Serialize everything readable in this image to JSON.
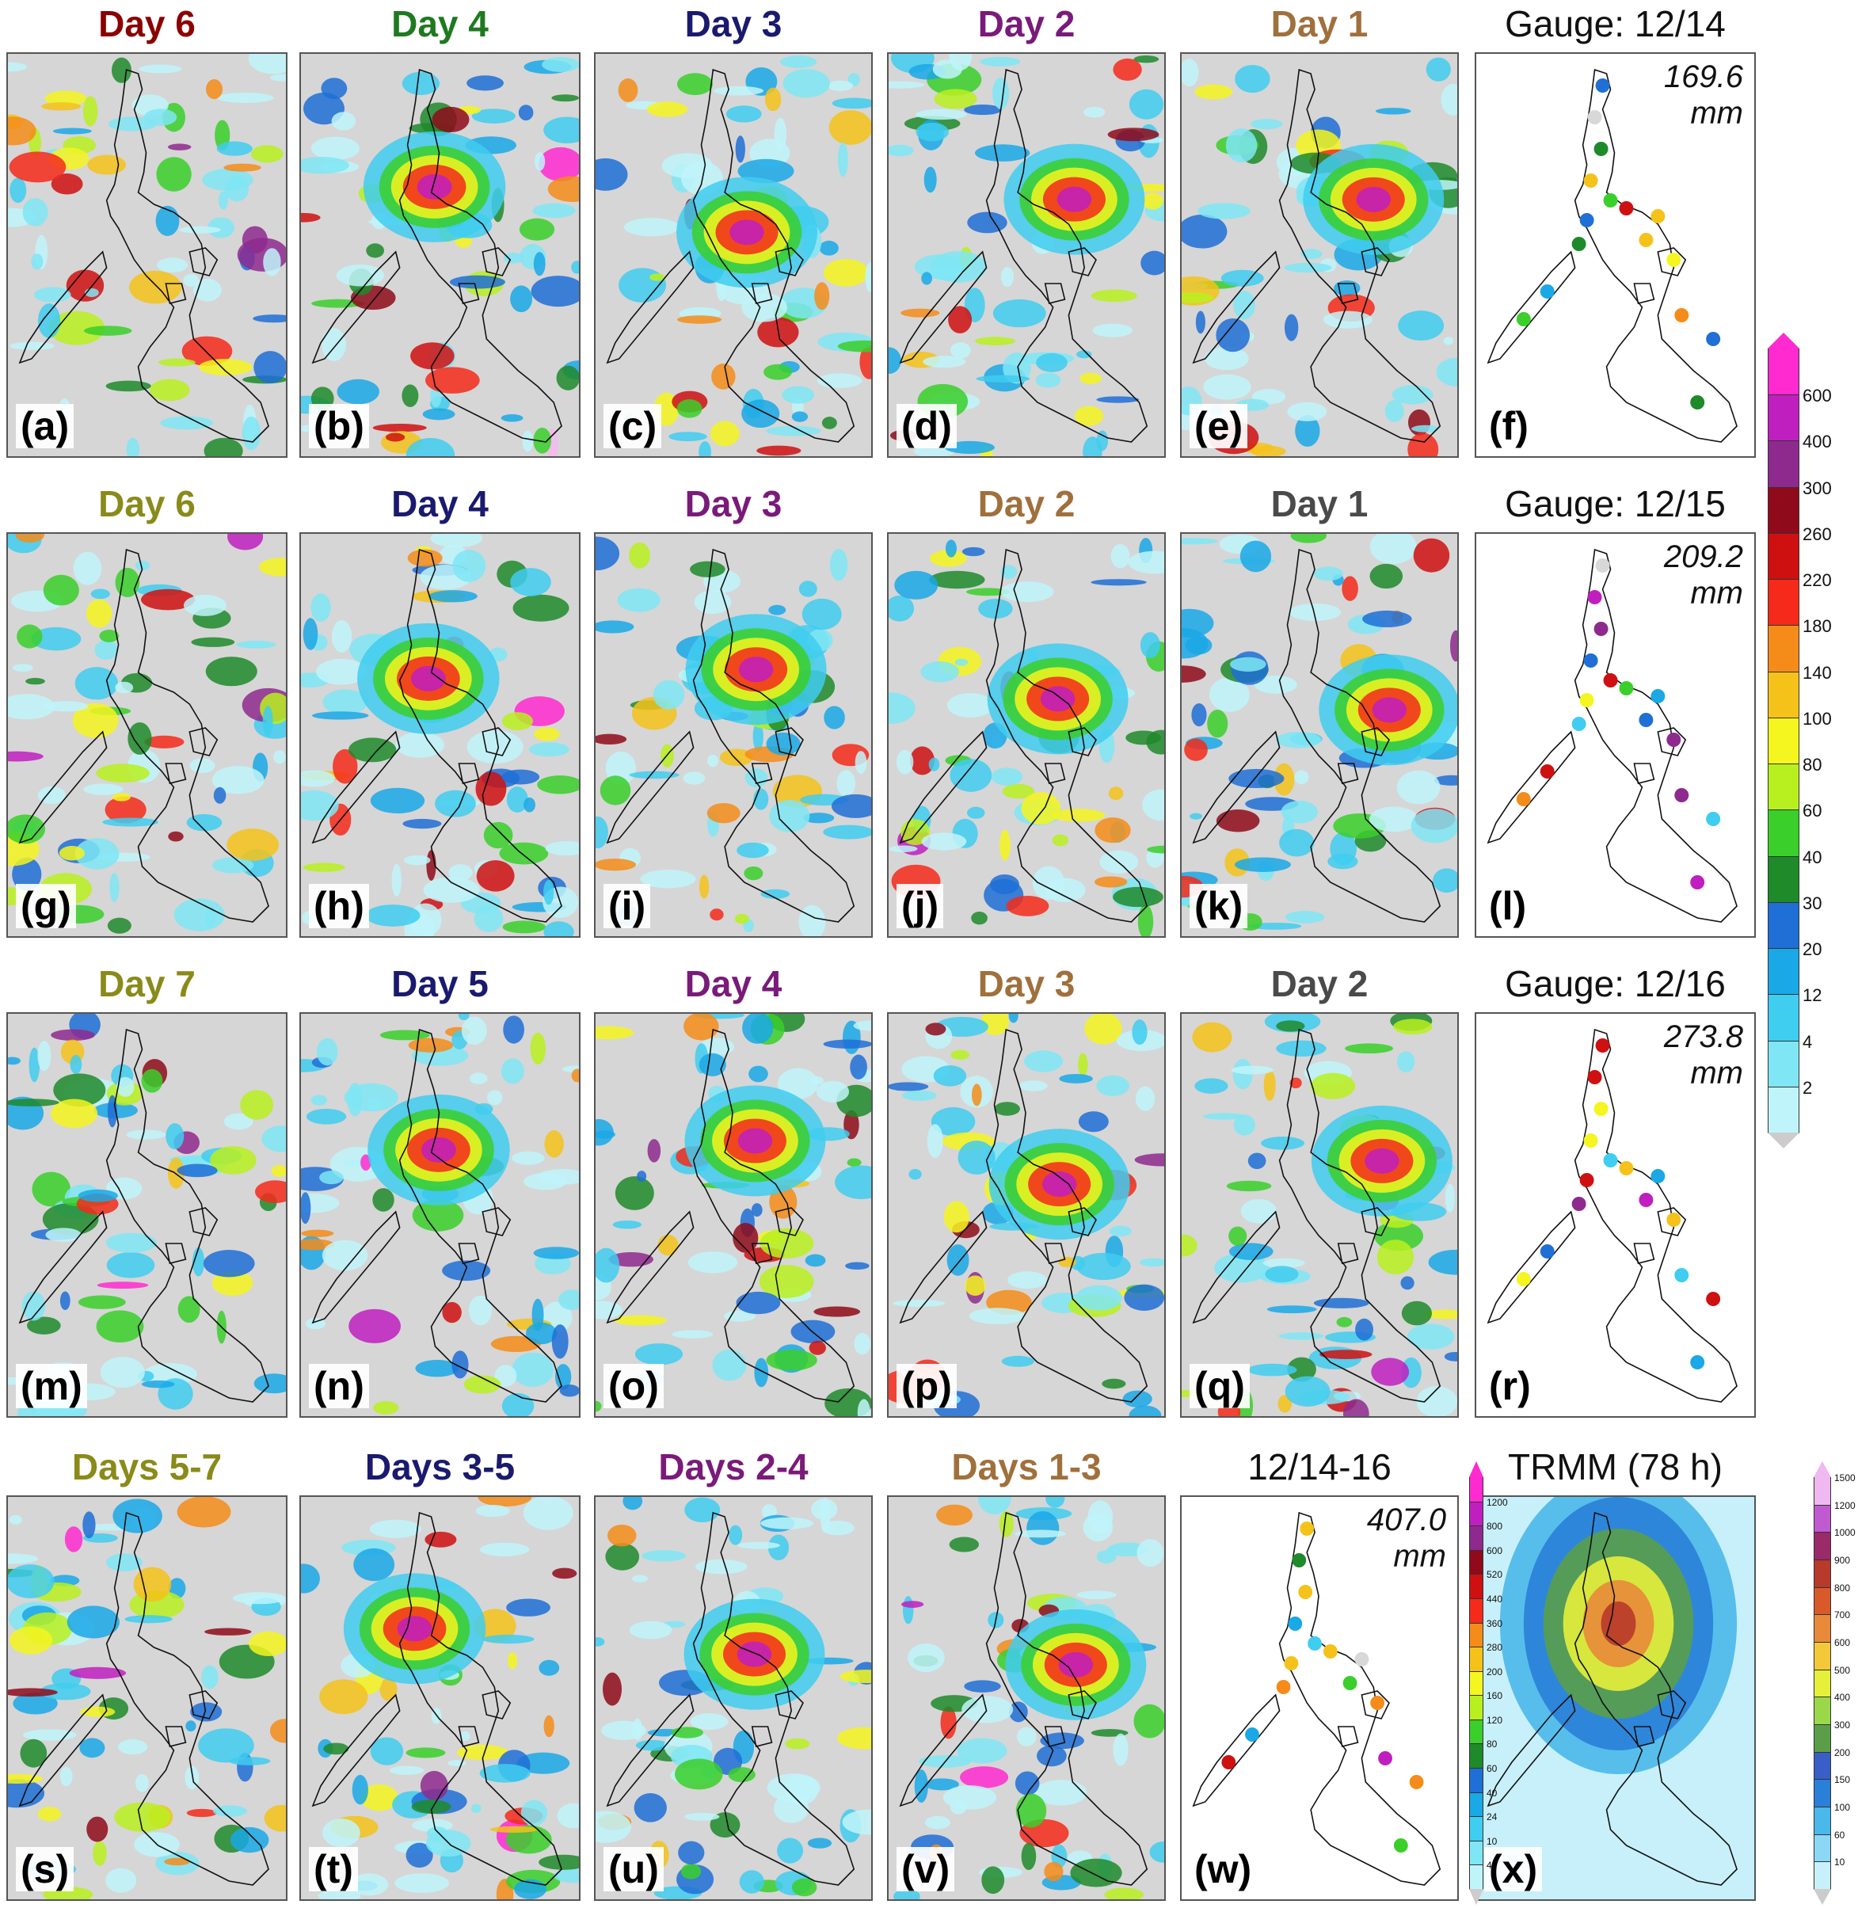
{
  "rows": [
    {
      "panels": [
        {
          "title": "Day 6",
          "color": "#8b0000",
          "label": "(a)",
          "kind": "model"
        },
        {
          "title": "Day 4",
          "color": "#1f7a1f",
          "label": "(b)",
          "kind": "model"
        },
        {
          "title": "Day 3",
          "color": "#1a1a6e",
          "label": "(c)",
          "kind": "model"
        },
        {
          "title": "Day 2",
          "color": "#7a1a7a",
          "label": "(d)",
          "kind": "model"
        },
        {
          "title": "Day 1",
          "color": "#a0703c",
          "label": "(e)",
          "kind": "model"
        },
        {
          "title": "Gauge: 12/14",
          "color": "#111111",
          "label": "(f)",
          "kind": "gauge",
          "amount": "169.6",
          "unit": "mm"
        }
      ]
    },
    {
      "panels": [
        {
          "title": "Day 6",
          "color": "#8a8a1a",
          "label": "(g)",
          "kind": "model"
        },
        {
          "title": "Day 4",
          "color": "#1a1a6e",
          "label": "(h)",
          "kind": "model"
        },
        {
          "title": "Day 3",
          "color": "#7a1a7a",
          "label": "(i)",
          "kind": "model"
        },
        {
          "title": "Day 2",
          "color": "#a0703c",
          "label": "(j)",
          "kind": "model"
        },
        {
          "title": "Day 1",
          "color": "#4a4a4a",
          "label": "(k)",
          "kind": "model"
        },
        {
          "title": "Gauge: 12/15",
          "color": "#111111",
          "label": "(l)",
          "kind": "gauge",
          "amount": "209.2",
          "unit": "mm"
        }
      ]
    },
    {
      "panels": [
        {
          "title": "Day 7",
          "color": "#8a8a1a",
          "label": "(m)",
          "kind": "model"
        },
        {
          "title": "Day 5",
          "color": "#1a1a6e",
          "label": "(n)",
          "kind": "model"
        },
        {
          "title": "Day 4",
          "color": "#7a1a7a",
          "label": "(o)",
          "kind": "model"
        },
        {
          "title": "Day 3",
          "color": "#a0703c",
          "label": "(p)",
          "kind": "model"
        },
        {
          "title": "Day 2",
          "color": "#4a4a4a",
          "label": "(q)",
          "kind": "model"
        },
        {
          "title": "Gauge: 12/16",
          "color": "#111111",
          "label": "(r)",
          "kind": "gauge",
          "amount": "273.8",
          "unit": "mm"
        }
      ]
    },
    {
      "panels": [
        {
          "title": "Days 5-7",
          "color": "#8a8a1a",
          "label": "(s)",
          "kind": "model"
        },
        {
          "title": "Days 3-5",
          "color": "#1a1a6e",
          "label": "(t)",
          "kind": "model"
        },
        {
          "title": "Days 2-4",
          "color": "#7a1a7a",
          "label": "(u)",
          "kind": "model"
        },
        {
          "title": "Days 1-3",
          "color": "#a0703c",
          "label": "(v)",
          "kind": "model"
        },
        {
          "title": "12/14-16",
          "color": "#111111",
          "label": "(w)",
          "kind": "gauge",
          "amount": "407.0",
          "unit": "mm"
        },
        {
          "title": "TRMM (78 h)",
          "color": "#111111",
          "label": "(x)",
          "kind": "trmm"
        }
      ]
    }
  ],
  "colorbars": {
    "daily": [
      "2",
      "4",
      "12",
      "20",
      "30",
      "40",
      "60",
      "80",
      "100",
      "140",
      "180",
      "220",
      "260",
      "300",
      "400",
      "600"
    ],
    "accum_w": [
      "4",
      "10",
      "24",
      "40",
      "60",
      "80",
      "120",
      "160",
      "200",
      "280",
      "360",
      "440",
      "520",
      "600",
      "800",
      "1200"
    ],
    "trmm": [
      "10",
      "60",
      "100",
      "150",
      "200",
      "300",
      "400",
      "500",
      "600",
      "700",
      "800",
      "900",
      "1000",
      "1200",
      "1500"
    ]
  },
  "palette": [
    "#bff5fa",
    "#7fe6f5",
    "#3fcdf0",
    "#1aa8e6",
    "#1f6fd6",
    "#1e8a2a",
    "#3acf2a",
    "#b8f01f",
    "#f5f51f",
    "#f5c21a",
    "#f58c1a",
    "#f52a1a",
    "#cf1010",
    "#8f0a1a",
    "#8e2a8e",
    "#c01fc0",
    "#ff2ad0",
    "#f5b8f0"
  ],
  "trmm_palette": [
    "#c8f0fa",
    "#8ad8f5",
    "#4ab8ea",
    "#2a7fd9",
    "#3a5ec8",
    "#5a9e4a",
    "#9ad84a",
    "#e6f03a",
    "#f5c83a",
    "#e88a3a",
    "#d85a2a",
    "#b83a2a",
    "#9a2a6a",
    "#c05ad0",
    "#f0b8f0"
  ]
}
